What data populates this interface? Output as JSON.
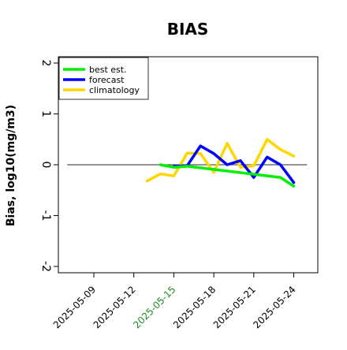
{
  "chart_data": {
    "type": "line",
    "title": "BIAS",
    "xlabel": "",
    "ylabel": "Bias, log10(mg/m3)",
    "ylim": [
      -2,
      2
    ],
    "x_range": [
      "2025-05-06",
      "2025-05-25"
    ],
    "grid": false,
    "legend_position": "top-left",
    "yticks": [
      {
        "value": -2,
        "label": "-2"
      },
      {
        "value": -1,
        "label": "-1"
      },
      {
        "value": 0,
        "label": "0"
      },
      {
        "value": 1,
        "label": "1"
      },
      {
        "value": 2,
        "label": "2"
      }
    ],
    "xticks": [
      {
        "date": "2025-05-09",
        "label": "2025-05-09",
        "color": "#000000"
      },
      {
        "date": "2025-05-12",
        "label": "2025-05-12",
        "color": "#000000"
      },
      {
        "date": "2025-05-15",
        "label": "2025-05-15",
        "color": "#228B22"
      },
      {
        "date": "2025-05-18",
        "label": "2025-05-18",
        "color": "#000000"
      },
      {
        "date": "2025-05-21",
        "label": "2025-05-21",
        "color": "#000000"
      },
      {
        "date": "2025-05-24",
        "label": "2025-05-24",
        "color": "#000000"
      }
    ],
    "reference_line": {
      "y": 0,
      "color": "#555555",
      "x_start": "2025-05-07",
      "x_end": "2025-05-25"
    },
    "series": [
      {
        "name": "best est.",
        "color": "#00ee00",
        "points": [
          {
            "x": "2025-05-14",
            "y": 0.0
          },
          {
            "x": "2025-05-15",
            "y": -0.05
          },
          {
            "x": "2025-05-16",
            "y": -0.03
          },
          {
            "x": "2025-05-23",
            "y": -0.25
          },
          {
            "x": "2025-05-24",
            "y": -0.42
          }
        ]
      },
      {
        "name": "forecast",
        "color": "#0000ff",
        "points": [
          {
            "x": "2025-05-15",
            "y": -0.03
          },
          {
            "x": "2025-05-16",
            "y": -0.02
          },
          {
            "x": "2025-05-17",
            "y": 0.37
          },
          {
            "x": "2025-05-18",
            "y": 0.22
          },
          {
            "x": "2025-05-19",
            "y": 0.0
          },
          {
            "x": "2025-05-20",
            "y": 0.08
          },
          {
            "x": "2025-05-21",
            "y": -0.25
          },
          {
            "x": "2025-05-22",
            "y": 0.15
          },
          {
            "x": "2025-05-23",
            "y": 0.0
          },
          {
            "x": "2025-05-24",
            "y": -0.35
          }
        ]
      },
      {
        "name": "climatology",
        "color": "#ffd700",
        "points": [
          {
            "x": "2025-05-13",
            "y": -0.32
          },
          {
            "x": "2025-05-14",
            "y": -0.18
          },
          {
            "x": "2025-05-15",
            "y": -0.22
          },
          {
            "x": "2025-05-16",
            "y": 0.23
          },
          {
            "x": "2025-05-17",
            "y": 0.22
          },
          {
            "x": "2025-05-18",
            "y": -0.15
          },
          {
            "x": "2025-05-19",
            "y": 0.42
          },
          {
            "x": "2025-05-20",
            "y": -0.05
          },
          {
            "x": "2025-05-21",
            "y": -0.02
          },
          {
            "x": "2025-05-22",
            "y": 0.5
          },
          {
            "x": "2025-05-23",
            "y": 0.3
          },
          {
            "x": "2025-05-24",
            "y": 0.17
          }
        ]
      }
    ]
  }
}
